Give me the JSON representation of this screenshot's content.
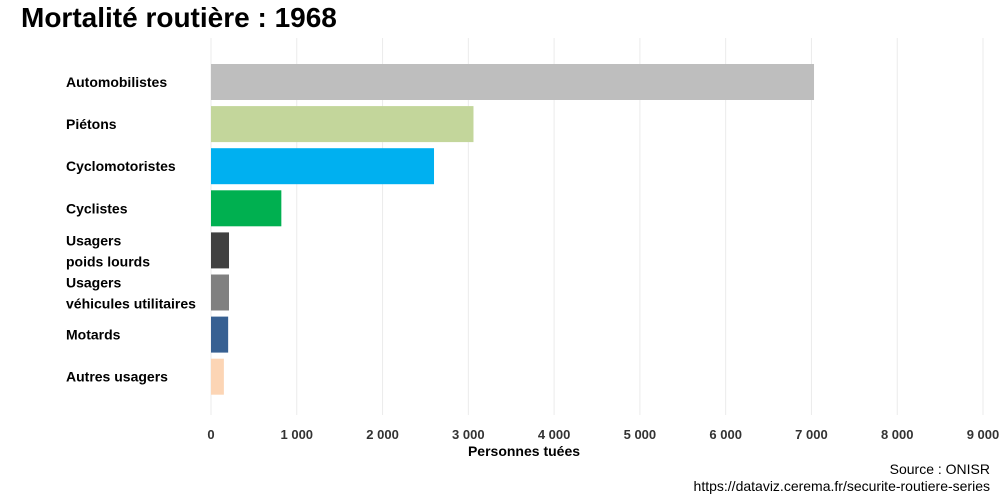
{
  "chart_data": {
    "type": "bar",
    "orientation": "horizontal",
    "title": "Mortalité routière : 1968",
    "xlabel": "Personnes tuées",
    "ylabel": "",
    "xlim": [
      0,
      9000
    ],
    "x_ticks": [
      0,
      1000,
      2000,
      3000,
      4000,
      5000,
      6000,
      7000,
      8000,
      9000
    ],
    "x_tick_labels": [
      "0",
      "1 000",
      "2 000",
      "3 000",
      "4 000",
      "5 000",
      "6 000",
      "7 000",
      "8 000",
      "9 000"
    ],
    "grid": true,
    "categories": [
      [
        "Automobilistes"
      ],
      [
        "Piétons"
      ],
      [
        "Cyclomotoristes"
      ],
      [
        "Cyclistes"
      ],
      [
        "Usagers",
        " poids lourds"
      ],
      [
        "Usagers",
        " véhicules utilitaires"
      ],
      [
        "Motards"
      ],
      [
        "Autres usagers"
      ]
    ],
    "values": [
      7030,
      3060,
      2600,
      820,
      210,
      210,
      200,
      150
    ],
    "colors": [
      "#bebebe",
      "#c3d69b",
      "#00b0f0",
      "#00b050",
      "#404040",
      "#808080",
      "#376092",
      "#fcd5b5"
    ]
  },
  "caption": {
    "source": "Source : ONISR",
    "url": "https://dataviz.cerema.fr/securite-routiere-series"
  }
}
